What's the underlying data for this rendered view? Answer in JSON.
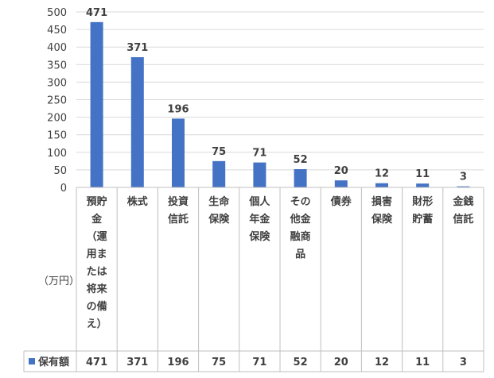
{
  "chart_data": {
    "type": "bar",
    "unit_label": "（万円）",
    "categories": [
      "預貯金（運用または将来の備え）",
      "株式",
      "投資信託",
      "生命保険",
      "個人年金保険",
      "その他金融商品",
      "債券",
      "損害保険",
      "財形貯蓄",
      "金銭信託"
    ],
    "category_lines": [
      [
        "預貯",
        "金",
        "（運",
        "用ま",
        "たは",
        "将来",
        "の備",
        "え）"
      ],
      [
        "株式"
      ],
      [
        "投資",
        "信託"
      ],
      [
        "生命",
        "保険"
      ],
      [
        "個人",
        "年金",
        "保険"
      ],
      [
        "その",
        "他金",
        "融商",
        "品"
      ],
      [
        "債券"
      ],
      [
        "損害",
        "保険"
      ],
      [
        "財形",
        "貯蓄"
      ],
      [
        "金銭",
        "信託"
      ]
    ],
    "series": [
      {
        "name": "保有額",
        "color": "#4472c4",
        "values": [
          471,
          371,
          196,
          75,
          71,
          52,
          20,
          12,
          11,
          3
        ]
      }
    ],
    "ylim": [
      0,
      500
    ],
    "yticks": [
      0,
      50,
      100,
      150,
      200,
      250,
      300,
      350,
      400,
      450,
      500
    ],
    "grid": true,
    "data_table": true,
    "legend": "bottom-left in data table"
  }
}
